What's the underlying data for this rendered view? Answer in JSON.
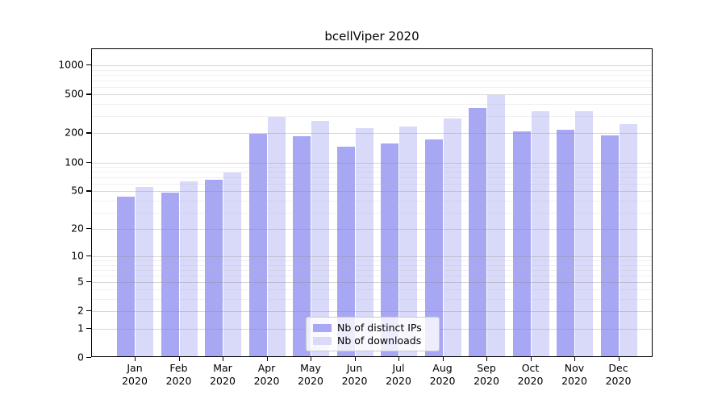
{
  "chart_data": {
    "type": "bar",
    "title": "bcellViper 2020",
    "categories": [
      "Jan 2020",
      "Feb 2020",
      "Mar 2020",
      "Apr 2020",
      "May 2020",
      "Jun 2020",
      "Jul 2020",
      "Aug 2020",
      "Sep 2020",
      "Oct 2020",
      "Nov 2020",
      "Dec 2020"
    ],
    "x_tick_line1": [
      "Jan",
      "Feb",
      "Mar",
      "Apr",
      "May",
      "Jun",
      "Jul",
      "Aug",
      "Sep",
      "Oct",
      "Nov",
      "Dec"
    ],
    "x_tick_line2": "2020",
    "series": [
      {
        "name": "Nb of distinct IPs",
        "color": "#a7a7f4",
        "values": [
          43,
          48,
          65,
          195,
          182,
          142,
          153,
          168,
          356,
          207,
          214,
          186
        ]
      },
      {
        "name": "Nb of downloads",
        "color": "#d9d9f9",
        "values": [
          54,
          62,
          77,
          292,
          262,
          221,
          229,
          277,
          486,
          330,
          331,
          245
        ]
      }
    ],
    "yscale": "log10(1+y)",
    "y_ticks": [
      0,
      1,
      2,
      5,
      10,
      20,
      50,
      100,
      200,
      500,
      1000
    ],
    "y_minor_gridlines": [
      3,
      4,
      6,
      7,
      8,
      9,
      30,
      40,
      60,
      70,
      80,
      90,
      300,
      400,
      600,
      700,
      800,
      900
    ],
    "ylim": [
      0,
      1400
    ],
    "grid": true,
    "legend_position": "lower center inside"
  },
  "legend": {
    "items": [
      {
        "label": "Nb of distinct IPs",
        "color": "#a7a7f4"
      },
      {
        "label": "Nb of downloads",
        "color": "#d9d9f9"
      }
    ]
  }
}
